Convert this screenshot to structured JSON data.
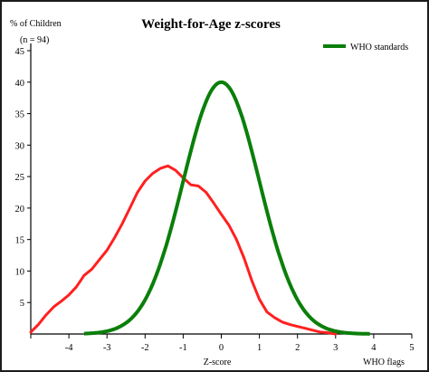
{
  "chart_data": {
    "type": "line",
    "title": "Weight-for-Age z-scores",
    "ylabel": "% of Children",
    "sample_note": "(n = 94)",
    "xlabel": "Z-score",
    "x_extra_label": "WHO flags",
    "xlim": [
      -5,
      5
    ],
    "ylim": [
      0,
      45
    ],
    "x_ticks": [
      -4,
      -3,
      -2,
      -1,
      0,
      1,
      2,
      3,
      4,
      5
    ],
    "y_ticks": [
      5,
      10,
      15,
      20,
      25,
      30,
      35,
      40,
      45
    ],
    "legend_position": "top-right",
    "series": [
      {
        "name": "",
        "color": "#ff2020",
        "x": [
          -5.0,
          -4.8,
          -4.6,
          -4.4,
          -4.2,
          -4.0,
          -3.8,
          -3.6,
          -3.4,
          -3.2,
          -3.0,
          -2.8,
          -2.6,
          -2.4,
          -2.2,
          -2.0,
          -1.8,
          -1.6,
          -1.4,
          -1.2,
          -1.0,
          -0.8,
          -0.6,
          -0.4,
          -0.2,
          0.0,
          0.2,
          0.4,
          0.6,
          0.8,
          1.0,
          1.2,
          1.4,
          1.6,
          1.8,
          2.0,
          2.2,
          2.4,
          2.6,
          2.8,
          3.0
        ],
        "y": [
          0.3,
          1.5,
          3.0,
          4.3,
          5.2,
          6.2,
          7.5,
          9.3,
          10.3,
          11.8,
          13.3,
          15.3,
          17.5,
          20.0,
          22.5,
          24.3,
          25.5,
          26.3,
          26.7,
          26.0,
          24.8,
          23.7,
          23.5,
          22.5,
          20.8,
          19.0,
          17.3,
          15.0,
          12.0,
          8.5,
          5.5,
          3.5,
          2.6,
          1.9,
          1.5,
          1.2,
          0.9,
          0.6,
          0.3,
          0.2,
          0.0
        ]
      },
      {
        "name": "WHO standards",
        "color": "#0a7f0a",
        "mean": 0,
        "sd": 1,
        "peak": 40
      }
    ]
  }
}
